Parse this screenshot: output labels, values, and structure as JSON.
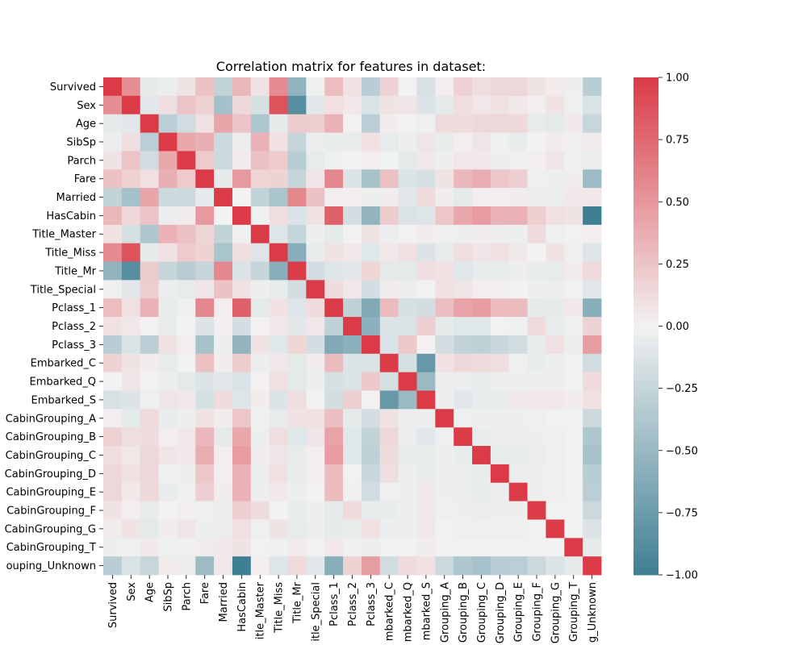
{
  "chart_data": {
    "type": "heatmap",
    "title": "Correlation matrix for features in dataset:",
    "xlabel": "",
    "ylabel": "",
    "features": [
      "Survived",
      "Sex",
      "Age",
      "SibSp",
      "Parch",
      "Fare",
      "Married",
      "HasCabin",
      "Title_Master",
      "Title_Miss",
      "Title_Mr",
      "Title_Special",
      "Pclass_1",
      "Pclass_2",
      "Pclass_3",
      "Embarked_C",
      "Embarked_Q",
      "Embarked_S",
      "CabinGrouping_A",
      "CabinGrouping_B",
      "CabinGrouping_C",
      "CabinGrouping_D",
      "CabinGrouping_E",
      "CabinGrouping_F",
      "CabinGrouping_G",
      "CabinGrouping_T",
      "CabinGrouping_Unknown"
    ],
    "visible_row_labels": [
      "Survived",
      "Sex",
      "Age",
      "SibSp",
      "Parch",
      "Fare",
      "Married",
      "HasCabin",
      "Title_Master",
      "Title_Miss",
      "Title_Mr",
      "Title_Special",
      "Pclass_1",
      "Pclass_2",
      "Pclass_3",
      "Embarked_C",
      "Embarked_Q",
      "Embarked_S",
      "CabinGrouping_A",
      "CabinGrouping_B",
      "CabinGrouping_C",
      "CabinGrouping_D",
      "CabinGrouping_E",
      "CabinGrouping_F",
      "CabinGrouping_G",
      "CabinGrouping_T",
      "ouping_Unknown"
    ],
    "visible_col_labels": [
      "Survived",
      "Sex",
      "Age",
      "SibSp",
      "Parch",
      "Fare",
      "Married",
      "HasCabin",
      "itle_Master",
      "Title_Miss",
      "Title_Mr",
      "itle_Special",
      "Pclass_1",
      "Pclass_2",
      "Pclass_3",
      "mbarked_C",
      "mbarked_Q",
      "mbarked_S",
      "Grouping_A",
      "Grouping_B",
      "Grouping_C",
      "Grouping_D",
      "Grouping_E",
      "Grouping_F",
      "Grouping_G",
      "Grouping_T",
      "g_Unknown"
    ],
    "colorbar": {
      "range": [
        -1.0,
        1.0
      ],
      "ticks": [
        -1.0,
        -0.75,
        -0.5,
        -0.25,
        0.0,
        0.25,
        0.5,
        0.75,
        1.0
      ],
      "tick_labels": [
        "−1.00",
        "−0.75",
        "−0.50",
        "−0.25",
        "0.00",
        "0.25",
        "0.50",
        "0.75",
        "1.00"
      ],
      "colors": {
        "negative": "#3f7f93",
        "center": "#f2f2f2",
        "positive": "#da3b46"
      }
    },
    "matrix": [
      [
        1.0,
        0.54,
        -0.07,
        -0.04,
        0.08,
        0.26,
        -0.26,
        0.32,
        0.09,
        0.57,
        -0.55,
        -0.02,
        0.29,
        0.09,
        -0.32,
        0.17,
        0.0,
        -0.15,
        0.02,
        0.18,
        0.11,
        0.15,
        0.15,
        0.08,
        0.04,
        -0.03,
        -0.32
      ],
      [
        0.54,
        1.0,
        -0.09,
        0.11,
        0.25,
        0.18,
        -0.43,
        0.14,
        -0.16,
        0.87,
        -0.87,
        -0.09,
        0.1,
        0.06,
        -0.14,
        0.08,
        0.07,
        -0.12,
        -0.08,
        0.11,
        0.06,
        0.09,
        0.05,
        0.02,
        0.08,
        -0.02,
        -0.14
      ],
      [
        -0.07,
        -0.09,
        1.0,
        -0.31,
        -0.19,
        0.1,
        0.42,
        0.25,
        -0.38,
        -0.07,
        0.21,
        0.2,
        0.35,
        0.01,
        -0.31,
        0.03,
        0.01,
        -0.02,
        0.13,
        0.12,
        0.15,
        0.15,
        0.14,
        -0.06,
        -0.08,
        0.05,
        -0.24
      ],
      [
        -0.04,
        0.11,
        -0.31,
        1.0,
        0.41,
        0.36,
        -0.21,
        -0.04,
        0.35,
        0.09,
        -0.25,
        -0.04,
        -0.05,
        -0.06,
        0.09,
        -0.06,
        -0.03,
        0.07,
        -0.05,
        0.02,
        0.07,
        -0.02,
        -0.05,
        0.0,
        0.03,
        -0.02,
        0.04
      ],
      [
        0.08,
        0.25,
        -0.19,
        0.41,
        1.0,
        0.22,
        -0.22,
        0.04,
        0.27,
        0.22,
        -0.33,
        -0.06,
        -0.02,
        -0.0,
        0.02,
        -0.01,
        -0.08,
        0.06,
        -0.03,
        0.06,
        0.05,
        -0.03,
        -0.02,
        0.02,
        0.07,
        -0.02,
        -0.04
      ],
      [
        0.26,
        0.18,
        0.1,
        0.36,
        0.22,
        1.0,
        -0.07,
        0.48,
        0.16,
        0.17,
        -0.25,
        0.07,
        0.59,
        -0.12,
        -0.41,
        0.27,
        -0.12,
        -0.16,
        0.08,
        0.31,
        0.37,
        0.23,
        0.19,
        -0.02,
        -0.03,
        0.03,
        -0.48
      ],
      [
        -0.26,
        -0.43,
        0.42,
        -0.21,
        -0.22,
        -0.07,
        1.0,
        0.0,
        -0.26,
        -0.4,
        0.58,
        0.26,
        0.02,
        0.02,
        -0.03,
        0.03,
        -0.09,
        0.13,
        0.03,
        -0.08,
        0.02,
        0.02,
        0.03,
        -0.04,
        -0.04,
        0.05,
        0.06
      ],
      [
        0.32,
        0.14,
        0.25,
        -0.04,
        0.04,
        0.48,
        0.0,
        1.0,
        -0.02,
        0.11,
        -0.13,
        0.09,
        0.79,
        -0.17,
        -0.54,
        0.21,
        -0.13,
        -0.11,
        0.24,
        0.41,
        0.47,
        0.35,
        0.35,
        0.19,
        0.1,
        0.08,
        -1.0
      ],
      [
        0.09,
        -0.16,
        -0.38,
        0.35,
        0.27,
        0.16,
        -0.26,
        -0.02,
        1.0,
        -0.11,
        -0.25,
        -0.03,
        -0.08,
        0.01,
        0.08,
        -0.04,
        0.01,
        0.03,
        -0.02,
        -0.03,
        0.03,
        -0.04,
        -0.03,
        0.12,
        -0.02,
        -0.01,
        0.02
      ],
      [
        0.57,
        0.87,
        -0.07,
        0.09,
        0.22,
        0.17,
        -0.4,
        0.11,
        -0.11,
        1.0,
        -0.6,
        -0.06,
        0.09,
        0.05,
        -0.1,
        0.06,
        0.1,
        -0.12,
        -0.06,
        0.11,
        0.07,
        0.1,
        0.05,
        0.0,
        0.08,
        -0.02,
        -0.11
      ],
      [
        -0.55,
        -0.87,
        0.21,
        -0.25,
        -0.33,
        -0.25,
        0.58,
        -0.13,
        -0.25,
        -0.6,
        1.0,
        -0.17,
        -0.11,
        -0.09,
        0.16,
        -0.08,
        -0.08,
        0.11,
        0.09,
        -0.1,
        -0.06,
        -0.05,
        -0.03,
        -0.05,
        -0.06,
        0.04,
        0.13
      ],
      [
        -0.02,
        -0.09,
        0.2,
        -0.04,
        -0.06,
        0.07,
        0.26,
        0.09,
        -0.03,
        -0.06,
        -0.17,
        1.0,
        0.12,
        0.06,
        -0.17,
        0.03,
        -0.03,
        -0.01,
        0.1,
        0.07,
        0.02,
        0.02,
        0.0,
        -0.03,
        -0.04,
        -0.01,
        -0.09
      ],
      [
        0.29,
        0.1,
        0.35,
        -0.05,
        -0.02,
        0.59,
        0.02,
        0.79,
        -0.08,
        0.09,
        -0.11,
        0.12,
        1.0,
        -0.29,
        -0.63,
        0.3,
        -0.16,
        -0.17,
        0.28,
        0.43,
        0.47,
        0.3,
        0.3,
        -0.07,
        -0.07,
        0.06,
        -0.59
      ],
      [
        0.09,
        0.06,
        0.01,
        -0.06,
        -0.0,
        -0.12,
        0.02,
        -0.17,
        0.01,
        0.05,
        -0.09,
        0.06,
        -0.29,
        1.0,
        -0.57,
        -0.13,
        -0.13,
        0.19,
        -0.07,
        -0.1,
        -0.1,
        -0.01,
        -0.02,
        0.13,
        -0.06,
        -0.02,
        0.17
      ],
      [
        -0.32,
        -0.14,
        -0.31,
        0.09,
        0.02,
        -0.41,
        -0.03,
        -0.54,
        0.08,
        -0.1,
        0.16,
        -0.17,
        -0.63,
        -0.57,
        1.0,
        -0.14,
        0.23,
        0.01,
        -0.17,
        -0.26,
        -0.29,
        -0.23,
        -0.19,
        -0.05,
        0.1,
        -0.04,
        0.46
      ],
      [
        0.17,
        0.08,
        0.03,
        -0.06,
        -0.01,
        0.27,
        0.03,
        0.21,
        -0.04,
        0.06,
        -0.08,
        0.03,
        0.3,
        -0.13,
        -0.14,
        1.0,
        -0.16,
        -0.78,
        0.09,
        0.15,
        0.12,
        0.11,
        -0.02,
        -0.05,
        -0.04,
        -0.01,
        -0.19
      ],
      [
        0.0,
        0.07,
        0.01,
        -0.03,
        -0.08,
        -0.12,
        -0.09,
        -0.13,
        0.01,
        0.1,
        -0.08,
        -0.03,
        -0.16,
        -0.13,
        0.23,
        -0.16,
        1.0,
        -0.5,
        -0.04,
        -0.04,
        -0.05,
        -0.03,
        -0.04,
        -0.03,
        -0.03,
        -0.01,
        0.13
      ],
      [
        -0.15,
        -0.12,
        -0.02,
        0.07,
        0.06,
        -0.16,
        0.13,
        -0.11,
        0.03,
        -0.12,
        0.11,
        -0.01,
        -0.17,
        0.19,
        0.01,
        -0.78,
        -0.5,
        1.0,
        -0.03,
        -0.09,
        -0.05,
        -0.05,
        0.05,
        0.06,
        0.06,
        0.03,
        0.1
      ],
      [
        0.02,
        -0.08,
        0.13,
        -0.05,
        -0.03,
        0.08,
        0.03,
        0.24,
        -0.02,
        -0.06,
        0.09,
        0.1,
        0.28,
        -0.07,
        -0.17,
        0.09,
        -0.04,
        -0.03,
        1.0,
        -0.02,
        -0.03,
        -0.03,
        -0.03,
        -0.02,
        -0.01,
        -0.01,
        -0.22
      ],
      [
        0.18,
        0.11,
        0.12,
        0.02,
        0.06,
        0.31,
        -0.08,
        0.41,
        -0.03,
        0.11,
        -0.1,
        0.07,
        0.43,
        -0.1,
        -0.26,
        0.15,
        -0.04,
        -0.09,
        -0.02,
        1.0,
        -0.05,
        -0.04,
        -0.04,
        -0.03,
        -0.02,
        -0.01,
        -0.38
      ],
      [
        0.11,
        0.06,
        0.15,
        0.07,
        0.05,
        0.37,
        0.02,
        0.47,
        0.03,
        0.07,
        -0.06,
        0.02,
        0.47,
        -0.1,
        -0.29,
        0.12,
        -0.05,
        -0.05,
        -0.03,
        -0.05,
        1.0,
        -0.05,
        -0.05,
        -0.04,
        -0.02,
        -0.01,
        -0.42
      ],
      [
        0.15,
        0.09,
        0.15,
        -0.02,
        -0.03,
        0.23,
        0.02,
        0.35,
        -0.04,
        0.1,
        -0.05,
        0.02,
        0.3,
        -0.01,
        -0.23,
        0.11,
        -0.03,
        -0.05,
        -0.03,
        -0.04,
        -0.05,
        1.0,
        -0.04,
        -0.03,
        -0.02,
        -0.01,
        -0.32
      ],
      [
        0.15,
        0.05,
        0.14,
        -0.05,
        -0.02,
        0.19,
        0.03,
        0.35,
        -0.03,
        0.05,
        -0.03,
        0.0,
        0.3,
        -0.02,
        -0.19,
        -0.02,
        -0.04,
        0.05,
        -0.03,
        -0.04,
        -0.05,
        -0.04,
        1.0,
        -0.03,
        -0.02,
        -0.01,
        -0.31
      ],
      [
        0.08,
        0.02,
        -0.06,
        0.0,
        0.02,
        -0.02,
        -0.04,
        0.19,
        0.12,
        0.0,
        -0.05,
        -0.03,
        -0.07,
        0.13,
        -0.05,
        -0.05,
        -0.03,
        0.06,
        -0.02,
        -0.03,
        -0.04,
        -0.03,
        -0.03,
        1.0,
        -0.01,
        -0.01,
        -0.22
      ],
      [
        0.04,
        0.08,
        -0.08,
        0.03,
        0.07,
        -0.03,
        -0.04,
        0.1,
        -0.02,
        0.08,
        -0.06,
        -0.04,
        -0.07,
        -0.06,
        0.1,
        -0.04,
        -0.03,
        0.06,
        -0.01,
        -0.02,
        -0.02,
        -0.02,
        -0.02,
        -0.01,
        1.0,
        -0.0,
        -0.12
      ],
      [
        -0.03,
        -0.02,
        0.05,
        -0.02,
        -0.02,
        0.03,
        0.05,
        0.08,
        -0.01,
        -0.02,
        0.04,
        -0.01,
        0.06,
        -0.02,
        -0.04,
        -0.01,
        -0.01,
        0.03,
        -0.01,
        -0.01,
        -0.01,
        -0.01,
        -0.01,
        -0.01,
        -0.0,
        1.0,
        -0.07
      ],
      [
        -0.32,
        -0.14,
        -0.24,
        0.04,
        -0.04,
        -0.48,
        0.06,
        -1.0,
        0.02,
        -0.11,
        0.13,
        -0.09,
        -0.59,
        0.17,
        0.46,
        -0.19,
        0.13,
        0.1,
        -0.22,
        -0.38,
        -0.42,
        -0.32,
        -0.31,
        -0.22,
        -0.12,
        -0.07,
        1.0
      ]
    ]
  }
}
